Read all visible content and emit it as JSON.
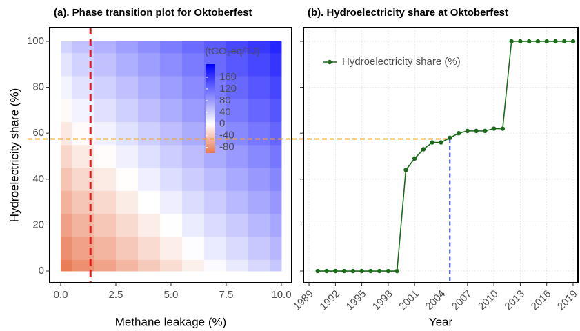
{
  "chart_data": [
    {
      "type": "heatmap",
      "title": "(a). Phase transition plot for Oktoberfest",
      "x_label": "Methane leakage (%)",
      "y_label": "Hydroelectricity share (%)",
      "x": [
        0,
        1,
        2,
        3,
        4,
        5,
        6,
        7,
        8,
        9,
        10
      ],
      "y": [
        0,
        10,
        20,
        30,
        40,
        50,
        60,
        70,
        80,
        90,
        100
      ],
      "z": [
        [
          -95,
          -81,
          -67,
          -53,
          -39,
          -25,
          -11,
          3,
          17,
          31,
          45
        ],
        [
          -82,
          -68,
          -54,
          -40,
          -26,
          -12,
          2,
          16,
          30,
          44,
          58
        ],
        [
          -69,
          -55,
          -41,
          -27,
          -13,
          1,
          15,
          29,
          43,
          57,
          71
        ],
        [
          -56,
          -42,
          -28,
          -14,
          0,
          14,
          28,
          42,
          56,
          70,
          84
        ],
        [
          -43,
          -29,
          -15,
          -1,
          13,
          27,
          41,
          55,
          69,
          83,
          97
        ],
        [
          -30,
          -16,
          -2,
          12,
          26,
          40,
          54,
          68,
          82,
          96,
          110
        ],
        [
          -17,
          -3,
          11,
          25,
          39,
          53,
          67,
          81,
          95,
          109,
          123
        ],
        [
          -4,
          10,
          24,
          38,
          52,
          66,
          80,
          94,
          108,
          122,
          136
        ],
        [
          9,
          23,
          37,
          51,
          65,
          79,
          93,
          107,
          121,
          135,
          149
        ],
        [
          22,
          36,
          50,
          64,
          78,
          92,
          106,
          120,
          134,
          148,
          162
        ],
        [
          35,
          49,
          63,
          77,
          91,
          105,
          119,
          133,
          147,
          161,
          175
        ]
      ],
      "xlim": [
        -0.5,
        10.47
      ],
      "ylim": [
        -5.1,
        106
      ],
      "xticks": [
        {
          "value": 0,
          "label": "0.0"
        },
        {
          "value": 2.5,
          "label": "2.5"
        },
        {
          "value": 5,
          "label": "5.0"
        },
        {
          "value": 7.5,
          "label": "7.5"
        },
        {
          "value": 10,
          "label": "10.0"
        }
      ],
      "yticks": [
        0,
        20,
        40,
        60,
        80,
        100
      ],
      "colorbar_title": "(tCO₂eq/TJ)",
      "clim": [
        -100,
        205
      ],
      "colorscale": [
        [
          -100,
          "#e8764f"
        ],
        [
          0,
          "#ffffff"
        ],
        [
          205,
          "#0000ff"
        ]
      ],
      "cticks": [
        -80,
        -40,
        0,
        40,
        80,
        120,
        160
      ],
      "vline": {
        "x": 1.35,
        "color": "#e8161b"
      },
      "hline": {
        "y": 57.5,
        "color": "#f5a623"
      }
    },
    {
      "type": "line",
      "title": "(b). Hydroelectricity share at Oktoberfest",
      "x_label": "Year",
      "x": [
        1990,
        1991,
        1992,
        1993,
        1994,
        1995,
        1996,
        1997,
        1998,
        1999,
        2000,
        2001,
        2002,
        2003,
        2004,
        2005,
        2006,
        2007,
        2008,
        2009,
        2010,
        2011,
        2012,
        2013,
        2014,
        2015,
        2016,
        2017,
        2018,
        2019
      ],
      "series": [
        {
          "name": "Hydroelectricity share (%)",
          "color": "#1b6b1b",
          "values": [
            0,
            0,
            0,
            0,
            0,
            0,
            0,
            0,
            0,
            0,
            44,
            49,
            53,
            56,
            56,
            58,
            60,
            61,
            61,
            61,
            62,
            62,
            100,
            100,
            100,
            100,
            100,
            100,
            100,
            100
          ]
        }
      ],
      "xlim": [
        1988.37,
        2019.55
      ],
      "ylim": [
        -5.1,
        106
      ],
      "xticks": [
        1989,
        1992,
        1995,
        1998,
        2001,
        2004,
        2007,
        2010,
        2013,
        2016,
        2019
      ],
      "yticks": [
        0,
        20,
        40,
        60,
        80,
        100
      ],
      "show_ytick_labels": false,
      "grid": true,
      "legend": "top-left",
      "vline": {
        "x": 2005,
        "y_end": 57.5,
        "color": "#1f3fd6"
      },
      "hline": {
        "y": 57.5,
        "x_end": 2005,
        "color": "#f5a623"
      }
    }
  ]
}
